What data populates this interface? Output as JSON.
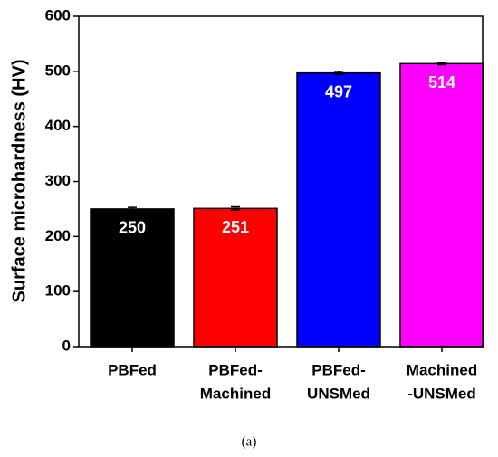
{
  "chart_data": {
    "type": "bar",
    "ylabel": "Surface microhardness (HV)",
    "caption": "(a)",
    "categories": [
      [
        "PBFed"
      ],
      [
        "PBFed-",
        "Machined"
      ],
      [
        "PBFed-",
        "UNSMed"
      ],
      [
        "Machined",
        "-UNSMed"
      ]
    ],
    "values": [
      250,
      251,
      497,
      514
    ],
    "errors": [
      3,
      3,
      3,
      2
    ],
    "colors": [
      "#000000",
      "#ff0000",
      "#0000ff",
      "#ff00ff"
    ],
    "ylim": [
      0,
      600
    ],
    "yticks": [
      0,
      100,
      200,
      300,
      400,
      500,
      600
    ]
  }
}
